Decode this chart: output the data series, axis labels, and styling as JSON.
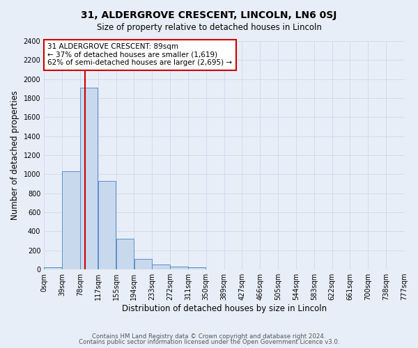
{
  "title": "31, ALDERGROVE CRESCENT, LINCOLN, LN6 0SJ",
  "subtitle": "Size of property relative to detached houses in Lincoln",
  "xlabel": "Distribution of detached houses by size in Lincoln",
  "ylabel": "Number of detached properties",
  "bin_labels": [
    "0sqm",
    "39sqm",
    "78sqm",
    "117sqm",
    "155sqm",
    "194sqm",
    "233sqm",
    "272sqm",
    "311sqm",
    "350sqm",
    "389sqm",
    "427sqm",
    "466sqm",
    "505sqm",
    "544sqm",
    "583sqm",
    "622sqm",
    "661sqm",
    "700sqm",
    "738sqm",
    "777sqm"
  ],
  "bar_heights": [
    25,
    1030,
    1910,
    930,
    320,
    110,
    55,
    30,
    20,
    0,
    0,
    0,
    0,
    0,
    0,
    0,
    0,
    0,
    0,
    0
  ],
  "bar_color": "#c9d9ed",
  "bar_edge_color": "#5b8fc9",
  "property_line_x": 89,
  "bin_width": 39,
  "annotation_title": "31 ALDERGROVE CRESCENT: 89sqm",
  "annotation_line1": "← 37% of detached houses are smaller (1,619)",
  "annotation_line2": "62% of semi-detached houses are larger (2,695) →",
  "annotation_box_color": "#ffffff",
  "annotation_box_edge": "#cc0000",
  "vline_color": "#cc0000",
  "ylim": [
    0,
    2400
  ],
  "yticks": [
    0,
    200,
    400,
    600,
    800,
    1000,
    1200,
    1400,
    1600,
    1800,
    2000,
    2200,
    2400
  ],
  "grid_color": "#d0d8e8",
  "background_color": "#e8eef8",
  "footer1": "Contains HM Land Registry data © Crown copyright and database right 2024.",
  "footer2": "Contains public sector information licensed under the Open Government Licence v3.0."
}
